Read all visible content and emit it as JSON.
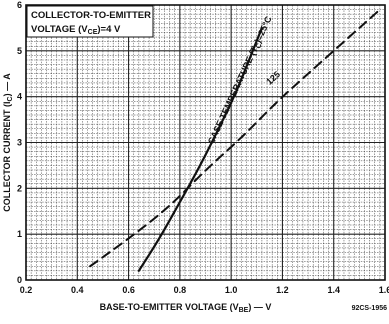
{
  "chart_data": {
    "type": "line",
    "note_box": {
      "line1": "COLLECTOR-TO-EMITTER",
      "line2": "VOLTAGE (V",
      "line2_sub": "CE",
      "line2_end": ")=4 V"
    },
    "xlabel": "BASE-TO-EMITTER VOLTAGE (V",
    "xlabel_sub": "BE",
    "xlabel_end": ") — V",
    "ylabel": "COLLECTOR CURRENT (I",
    "ylabel_sub": "C",
    "ylabel_end": ") — A",
    "figure_code": "92CS-1956",
    "xlim": [
      0.2,
      1.6
    ],
    "ylim": [
      0,
      6
    ],
    "x_ticks": [
      "0.2",
      "0.4",
      "0.6",
      "0.8",
      "1.0",
      "1.2",
      "1.4",
      "1.6"
    ],
    "y_ticks": [
      "0",
      "1",
      "2",
      "3",
      "4",
      "5",
      "6"
    ],
    "grid": true,
    "series": [
      {
        "name": "CASE TEMPERATURE (T",
        "name_sub": "C",
        "name_end": ")=25°C",
        "style": "solid",
        "x": [
          0.64,
          0.72,
          0.8,
          0.88,
          0.96,
          1.02,
          1.07,
          1.12
        ],
        "y": [
          0.2,
          0.9,
          1.7,
          2.5,
          3.4,
          4.1,
          4.8,
          5.5
        ]
      },
      {
        "name": "125",
        "style": "dashed",
        "x": [
          0.45,
          0.6,
          0.76,
          0.9,
          1.04,
          1.18,
          1.32,
          1.46,
          1.58
        ],
        "y": [
          0.3,
          0.9,
          1.6,
          2.4,
          3.1,
          3.9,
          4.6,
          5.3,
          5.9
        ]
      }
    ]
  }
}
